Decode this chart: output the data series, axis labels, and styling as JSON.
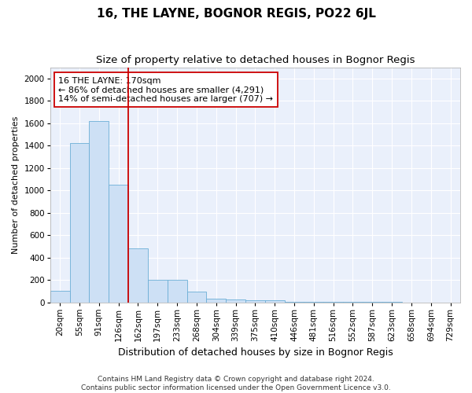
{
  "title": "16, THE LAYNE, BOGNOR REGIS, PO22 6JL",
  "subtitle": "Size of property relative to detached houses in Bognor Regis",
  "xlabel": "Distribution of detached houses by size in Bognor Regis",
  "ylabel": "Number of detached properties",
  "footer1": "Contains HM Land Registry data © Crown copyright and database right 2024.",
  "footer2": "Contains public sector information licensed under the Open Government Licence v3.0.",
  "categories": [
    "20sqm",
    "55sqm",
    "91sqm",
    "126sqm",
    "162sqm",
    "197sqm",
    "233sqm",
    "268sqm",
    "304sqm",
    "339sqm",
    "375sqm",
    "410sqm",
    "446sqm",
    "481sqm",
    "516sqm",
    "552sqm",
    "587sqm",
    "623sqm",
    "658sqm",
    "694sqm",
    "729sqm"
  ],
  "values": [
    100,
    1420,
    1620,
    1050,
    480,
    200,
    200,
    95,
    35,
    25,
    20,
    15,
    5,
    3,
    2,
    1,
    1,
    1,
    0,
    0,
    0
  ],
  "bar_color": "#cde0f5",
  "bar_edge_color": "#6baed6",
  "vline_color": "#cc0000",
  "vline_x": 3.5,
  "annotation_text": "16 THE LAYNE: 170sqm\n← 86% of detached houses are smaller (4,291)\n14% of semi-detached houses are larger (707) →",
  "annotation_box_color": "white",
  "annotation_box_edge_color": "#cc0000",
  "ylim": [
    0,
    2100
  ],
  "yticks": [
    0,
    200,
    400,
    600,
    800,
    1000,
    1200,
    1400,
    1600,
    1800,
    2000
  ],
  "bg_color": "#eaf0fb",
  "title_fontsize": 11,
  "subtitle_fontsize": 9.5,
  "xlabel_fontsize": 9,
  "ylabel_fontsize": 8,
  "tick_fontsize": 7.5,
  "annotation_fontsize": 8,
  "footer_fontsize": 6.5
}
